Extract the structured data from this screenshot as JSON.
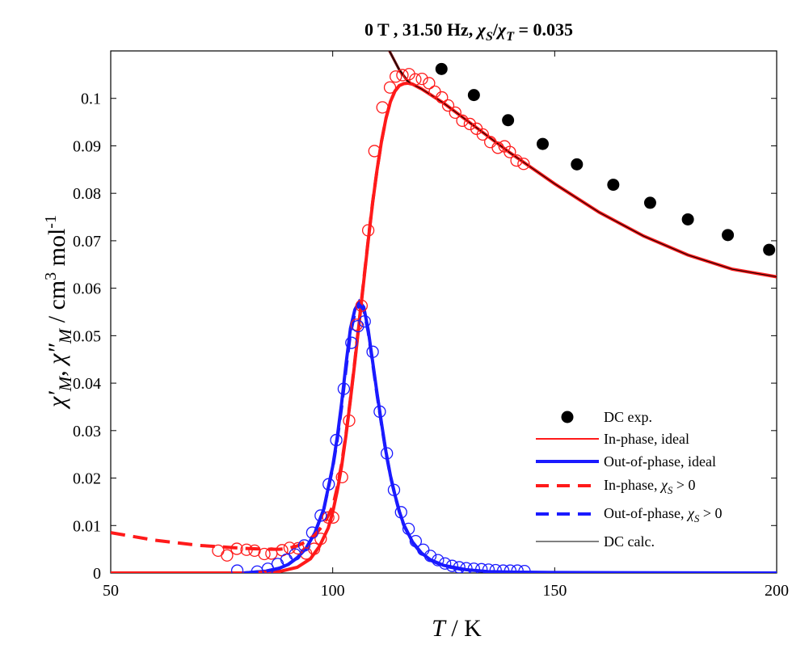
{
  "chart_data": {
    "type": "line",
    "title": {
      "prefix": "0 T , 31.50 Hz, ",
      "chi": "χ",
      "sub_s": "S",
      "slash": "/",
      "sub_t": "T",
      "suffix": " = 0.035"
    },
    "xlabel": {
      "italic": "T",
      "rest": " / K"
    },
    "ylabel": {
      "chi1": "χ′",
      "sub1": "M",
      "sep": ", ",
      "chi2": "χ″",
      "sub2": "M",
      "unit": " / cm",
      "cube": "3",
      "mol": " mol",
      "neg1": "-1"
    },
    "xlim": [
      50,
      200
    ],
    "ylim": [
      0,
      0.11
    ],
    "xticks": [
      "50",
      "100",
      "150",
      "200"
    ],
    "yticks": [
      "0",
      "0.01",
      "0.02",
      "0.03",
      "0.04",
      "0.05",
      "0.06",
      "0.07",
      "0.08",
      "0.09",
      "0.1"
    ],
    "grid": false,
    "legend_position": "lower-right",
    "colors": {
      "in_phase": "#ff1a1a",
      "out_phase": "#1a1aff",
      "dc": "#000000",
      "dc_calc_under": "#7a1010"
    },
    "legend": {
      "dc_exp": "DC exp.",
      "in_ideal": "In-phase, ideal",
      "out_ideal": "Out-of-phase, ideal",
      "in_chis_prefix": "In-phase, ",
      "out_chis_prefix": "Out-of-phase, ",
      "chi": "χ",
      "sub": "S",
      "gt": " > 0",
      "dc_calc": "DC calc."
    },
    "series": [
      {
        "name": "DC exp.",
        "kind": "scatter-filled",
        "x": [
          124.5,
          131.8,
          139.5,
          147.3,
          155.0,
          163.2,
          171.5,
          180.0,
          189.0,
          198.3
        ],
        "y": [
          0.1062,
          0.1007,
          0.0954,
          0.0904,
          0.0861,
          0.0818,
          0.078,
          0.0745,
          0.0712,
          0.0681
        ]
      },
      {
        "name": "In-phase exp.",
        "kind": "scatter-open",
        "x": [
          74.2,
          76.2,
          78.4,
          80.6,
          82.4,
          84.6,
          86.2,
          88.6,
          90.3,
          92.2,
          94.0,
          95.8,
          97.3,
          99.0,
          100.1,
          102.1,
          103.7,
          105.4,
          106.5,
          108.0,
          109.4,
          111.2,
          112.9,
          114.2,
          115.7,
          117.2,
          118.6,
          120.1,
          121.7,
          123.0,
          124.6,
          126.0,
          127.6,
          129.2,
          130.9,
          132.4,
          133.8,
          135.5,
          137.2,
          138.7,
          139.9,
          141.4,
          143.0
        ],
        "y": [
          0.0047,
          0.0037,
          0.0051,
          0.0049,
          0.0047,
          0.004,
          0.0041,
          0.0048,
          0.0053,
          0.0052,
          0.0041,
          0.0051,
          0.0072,
          0.0117,
          0.0117,
          0.0202,
          0.0321,
          0.0523,
          0.0563,
          0.0722,
          0.0889,
          0.0981,
          0.1023,
          0.1046,
          0.1049,
          0.1051,
          0.104,
          0.1041,
          0.1032,
          0.1014,
          0.1002,
          0.0985,
          0.097,
          0.0953,
          0.0946,
          0.0936,
          0.0924,
          0.0908,
          0.0896,
          0.0899,
          0.0887,
          0.0869,
          0.0862
        ]
      },
      {
        "name": "Out-of-phase exp.",
        "kind": "scatter-open",
        "x": [
          78.5,
          83.0,
          85.4,
          87.6,
          89.6,
          91.5,
          93.6,
          95.4,
          97.3,
          99.1,
          100.8,
          102.5,
          104.2,
          105.7,
          107.2,
          109.0,
          110.6,
          112.2,
          113.8,
          115.4,
          117.1,
          118.7,
          120.4,
          122.0,
          123.7,
          125.3,
          126.9,
          128.5,
          130.1,
          131.8,
          133.5,
          135.1,
          136.7,
          138.4,
          140.0,
          141.6,
          143.2
        ],
        "y": [
          0.0005,
          0.0003,
          0.0009,
          0.0019,
          0.0028,
          0.0039,
          0.0058,
          0.0085,
          0.0121,
          0.0187,
          0.028,
          0.0388,
          0.0485,
          0.052,
          0.053,
          0.0466,
          0.034,
          0.0252,
          0.0175,
          0.0128,
          0.0093,
          0.0067,
          0.0049,
          0.0036,
          0.0027,
          0.002,
          0.0015,
          0.0012,
          0.001,
          0.0009,
          0.0008,
          0.0007,
          0.0006,
          0.0005,
          0.0005,
          0.0005,
          0.0004
        ]
      },
      {
        "name": "In-phase, ideal",
        "kind": "line",
        "x": [
          50,
          80,
          88,
          92,
          95,
          97,
          99,
          100,
          101,
          102,
          103,
          104,
          105,
          106,
          107,
          108,
          109,
          110,
          111,
          112,
          113,
          114,
          115,
          116,
          117,
          118,
          120,
          125,
          130,
          140,
          150,
          160,
          170,
          180,
          190,
          200
        ],
        "y": [
          0,
          0,
          0.0003,
          0.0012,
          0.003,
          0.0056,
          0.0095,
          0.0128,
          0.0172,
          0.0225,
          0.029,
          0.0365,
          0.0445,
          0.053,
          0.0615,
          0.07,
          0.078,
          0.085,
          0.091,
          0.0958,
          0.0993,
          0.1015,
          0.1027,
          0.1031,
          0.1032,
          0.103,
          0.102,
          0.099,
          0.0955,
          0.0885,
          0.082,
          0.076,
          0.071,
          0.067,
          0.064,
          0.0624
        ]
      },
      {
        "name": "Out-of-phase, ideal",
        "kind": "line",
        "x": [
          50,
          80,
          85,
          88,
          90,
          92,
          94,
          96,
          98,
          100,
          101,
          102,
          103,
          104,
          105,
          106,
          107,
          108,
          109,
          110,
          111,
          112,
          113,
          114,
          115,
          116,
          118,
          120,
          122,
          125,
          130,
          135,
          140,
          150,
          200
        ],
        "y": [
          0,
          0,
          0.0004,
          0.001,
          0.0018,
          0.0032,
          0.0052,
          0.0085,
          0.0135,
          0.0225,
          0.0285,
          0.0358,
          0.044,
          0.0515,
          0.0555,
          0.0572,
          0.056,
          0.0512,
          0.0445,
          0.0378,
          0.0315,
          0.0255,
          0.0205,
          0.0165,
          0.013,
          0.0102,
          0.0065,
          0.0042,
          0.0028,
          0.0016,
          0.0007,
          0.0003,
          0.0002,
          0.0001,
          0
        ]
      },
      {
        "name": "In-phase, χS > 0",
        "kind": "dashed",
        "x": [
          50,
          60,
          70,
          80,
          85,
          88,
          90,
          92,
          94,
          96,
          98,
          100,
          101,
          102,
          103,
          104,
          105,
          106,
          107,
          108,
          109,
          110,
          111,
          112,
          113,
          114,
          115,
          116,
          117,
          118,
          120
        ],
        "y": [
          0.0085,
          0.0069,
          0.0058,
          0.0052,
          0.005,
          0.005,
          0.0052,
          0.0057,
          0.0066,
          0.008,
          0.0103,
          0.014,
          0.018,
          0.023,
          0.0293,
          0.0367,
          0.0448,
          0.0533,
          0.0618,
          0.0702,
          0.0782,
          0.085,
          0.091,
          0.0958,
          0.0993,
          0.1015,
          0.1027,
          0.1031,
          0.1032,
          0.103,
          0.102
        ]
      },
      {
        "name": "Out-of-phase, χS > 0",
        "kind": "dashed",
        "x": [
          80,
          85,
          88,
          90,
          92,
          94,
          96,
          98,
          100,
          101,
          102,
          103,
          104,
          105,
          106,
          107,
          108,
          109,
          110,
          111,
          112,
          113,
          114,
          115,
          116,
          118,
          120,
          122,
          125,
          130
        ],
        "y": [
          0,
          0.0004,
          0.001,
          0.0018,
          0.0032,
          0.0052,
          0.0085,
          0.0135,
          0.0222,
          0.028,
          0.035,
          0.043,
          0.0505,
          0.0548,
          0.0565,
          0.0555,
          0.0508,
          0.0442,
          0.0375,
          0.0313,
          0.0253,
          0.0204,
          0.0164,
          0.0129,
          0.0101,
          0.0064,
          0.0041,
          0.0027,
          0.0015,
          0.0006
        ]
      },
      {
        "name": "DC calc.",
        "kind": "thin-line",
        "x": [
          112.5,
          115,
          117,
          120,
          125,
          130,
          140,
          150,
          160,
          170,
          180,
          190,
          200
        ],
        "y": [
          0.1105,
          0.106,
          0.1035,
          0.102,
          0.099,
          0.0955,
          0.0885,
          0.082,
          0.076,
          0.071,
          0.067,
          0.064,
          0.0624
        ]
      }
    ]
  }
}
